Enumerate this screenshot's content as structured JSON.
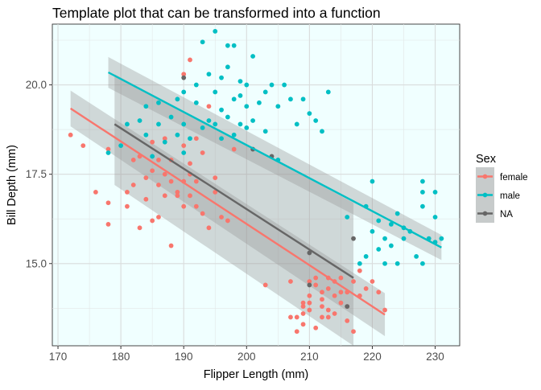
{
  "chart_data": {
    "type": "scatter",
    "title": "Template plot that can be transformed into a function",
    "xlabel": "Flipper Length (mm)",
    "ylabel": "Bill Depth (mm)",
    "xlim": [
      169.1,
      233.9
    ],
    "ylim": [
      12.7,
      21.7
    ],
    "x_ticks": [
      170,
      180,
      190,
      200,
      210,
      220,
      230
    ],
    "y_ticks": [
      15.0,
      17.5,
      20.0
    ],
    "y_tick_labels": [
      "15.0",
      "17.5",
      "20.0"
    ],
    "grid": true,
    "panel_background": "#F0FFFF",
    "legend": {
      "title": "Sex",
      "placement": "right",
      "entries": [
        "female",
        "male",
        "NA"
      ]
    },
    "series": [
      {
        "name": "female",
        "color": "#F8766D",
        "points": [
          [
            172,
            18.6
          ],
          [
            174,
            18.3
          ],
          [
            176,
            17.0
          ],
          [
            178,
            16.7
          ],
          [
            178,
            16.1
          ],
          [
            178,
            18.2
          ],
          [
            181,
            17.0
          ],
          [
            181,
            16.6
          ],
          [
            182,
            17.9
          ],
          [
            182,
            17.2
          ],
          [
            183,
            18.0
          ],
          [
            183,
            16.0
          ],
          [
            184,
            16.8
          ],
          [
            184,
            17.4
          ],
          [
            185,
            16.2
          ],
          [
            185,
            17.6
          ],
          [
            185,
            18.4
          ],
          [
            186,
            17.2
          ],
          [
            186,
            17.9
          ],
          [
            186,
            16.3
          ],
          [
            187,
            18.5
          ],
          [
            187,
            17.5
          ],
          [
            187,
            16.9
          ],
          [
            188,
            17.3
          ],
          [
            188,
            15.5
          ],
          [
            188,
            17.9
          ],
          [
            189,
            17.0
          ],
          [
            189,
            16.9
          ],
          [
            190,
            17.3
          ],
          [
            190,
            18.3
          ],
          [
            190,
            16.6
          ],
          [
            191,
            17.8
          ],
          [
            191,
            16.9
          ],
          [
            191,
            17.5
          ],
          [
            192,
            17.3
          ],
          [
            192,
            16.6
          ],
          [
            193,
            18.1
          ],
          [
            193,
            16.4
          ],
          [
            194,
            16.0
          ],
          [
            195,
            17.4
          ],
          [
            195,
            17.0
          ],
          [
            196,
            16.3
          ],
          [
            197,
            16.2
          ],
          [
            198,
            18.2
          ],
          [
            191,
            20.7
          ],
          [
            190,
            20.3
          ],
          [
            194,
            19.4
          ],
          [
            192,
            18.5
          ],
          [
            203,
            14.4
          ],
          [
            207,
            13.5
          ],
          [
            208,
            13.5
          ],
          [
            209,
            13.8
          ],
          [
            209,
            13.6
          ],
          [
            209,
            13.3
          ],
          [
            210,
            14.1
          ],
          [
            210,
            13.9
          ],
          [
            210,
            13.7
          ],
          [
            211,
            14.4
          ],
          [
            211,
            13.2
          ],
          [
            211,
            14.6
          ],
          [
            212,
            14.0
          ],
          [
            212,
            13.8
          ],
          [
            212,
            14.2
          ],
          [
            212,
            13.5
          ],
          [
            213,
            14.6
          ],
          [
            213,
            14.3
          ],
          [
            213,
            13.7
          ],
          [
            214,
            14.1
          ],
          [
            214,
            13.6
          ],
          [
            214,
            14.5
          ],
          [
            215,
            14.2
          ],
          [
            215,
            13.9
          ],
          [
            215,
            14.6
          ],
          [
            216,
            13.4
          ],
          [
            216,
            13.8
          ],
          [
            217,
            14.5
          ],
          [
            217,
            13.1
          ],
          [
            218,
            14.1
          ],
          [
            218,
            14.8
          ],
          [
            219,
            14.3
          ],
          [
            220,
            14.5
          ],
          [
            221,
            14.2
          ],
          [
            222,
            13.7
          ],
          [
            207,
            14.5
          ],
          [
            208,
            13.1
          ],
          [
            209,
            13.9
          ],
          [
            210,
            14.5
          ],
          [
            213,
            13.5
          ],
          [
            216,
            14.2
          ]
        ]
      },
      {
        "name": "male",
        "color": "#00BFC4",
        "points": [
          [
            178,
            18.1
          ],
          [
            180,
            18.3
          ],
          [
            181,
            18.9
          ],
          [
            183,
            19.0
          ],
          [
            184,
            18.6
          ],
          [
            184,
            19.4
          ],
          [
            185,
            18.0
          ],
          [
            186,
            18.9
          ],
          [
            186,
            19.5
          ],
          [
            187,
            18.4
          ],
          [
            188,
            19.1
          ],
          [
            189,
            18.6
          ],
          [
            189,
            19.6
          ],
          [
            190,
            18.9
          ],
          [
            190,
            18.1
          ],
          [
            190,
            19.8
          ],
          [
            191,
            18.5
          ],
          [
            192,
            20.0
          ],
          [
            192,
            19.5
          ],
          [
            193,
            21.2
          ],
          [
            193,
            18.8
          ],
          [
            194,
            20.3
          ],
          [
            194,
            19.0
          ],
          [
            195,
            21.5
          ],
          [
            195,
            19.8
          ],
          [
            195,
            18.9
          ],
          [
            196,
            20.2
          ],
          [
            196,
            19.3
          ],
          [
            196,
            18.5
          ],
          [
            197,
            21.1
          ],
          [
            197,
            19.1
          ],
          [
            197,
            20.5
          ],
          [
            198,
            19.6
          ],
          [
            198,
            21.1
          ],
          [
            198,
            18.6
          ],
          [
            199,
            19.7
          ],
          [
            199,
            18.9
          ],
          [
            199,
            20.1
          ],
          [
            200,
            19.4
          ],
          [
            200,
            18.8
          ],
          [
            200,
            20.0
          ],
          [
            201,
            20.8
          ],
          [
            201,
            19.0
          ],
          [
            202,
            19.5
          ],
          [
            203,
            18.7
          ],
          [
            203,
            19.8
          ],
          [
            204,
            20.0
          ],
          [
            205,
            19.4
          ],
          [
            205,
            17.9
          ],
          [
            206,
            20.0
          ],
          [
            207,
            19.6
          ],
          [
            208,
            18.9
          ],
          [
            209,
            19.6
          ],
          [
            210,
            19.2
          ],
          [
            211,
            19.0
          ],
          [
            212,
            18.7
          ],
          [
            213,
            19.8
          ],
          [
            216,
            16.3
          ],
          [
            218,
            15.0
          ],
          [
            219,
            16.6
          ],
          [
            219,
            15.2
          ],
          [
            220,
            17.3
          ],
          [
            220,
            15.9
          ],
          [
            221,
            15.4
          ],
          [
            221,
            16.2
          ],
          [
            222,
            15.7
          ],
          [
            222,
            15.0
          ],
          [
            223,
            16.1
          ],
          [
            223,
            15.5
          ],
          [
            224,
            16.4
          ],
          [
            224,
            15.0
          ],
          [
            225,
            16.0
          ],
          [
            225,
            15.7
          ],
          [
            226,
            15.9
          ],
          [
            227,
            15.2
          ],
          [
            228,
            17.3
          ],
          [
            228,
            16.6
          ],
          [
            228,
            15.0
          ],
          [
            228,
            17.0
          ],
          [
            229,
            15.7
          ],
          [
            230,
            16.3
          ],
          [
            230,
            17.0
          ],
          [
            230,
            15.6
          ],
          [
            231,
            15.7
          ]
        ]
      },
      {
        "name": "NA",
        "color": "#666666",
        "points": [
          [
            190,
            20.2
          ],
          [
            201,
            18.2
          ],
          [
            204,
            18.0
          ],
          [
            210,
            15.3
          ],
          [
            217,
            15.7
          ],
          [
            210,
            14.4
          ],
          [
            216,
            13.8
          ]
        ]
      }
    ],
    "trend_lines": [
      {
        "series": "female",
        "color": "#F8766D",
        "x": [
          172,
          222
        ],
        "y": [
          19.34,
          13.57
        ],
        "ci_upper": [
          19.84,
          14.17
        ],
        "ci_lower": [
          18.84,
          12.97
        ]
      },
      {
        "series": "male",
        "color": "#00BFC4",
        "x": [
          178,
          231
        ],
        "y": [
          20.35,
          15.45
        ],
        "ci_upper": [
          20.78,
          15.8
        ],
        "ci_lower": [
          19.92,
          15.1
        ]
      },
      {
        "series": "NA",
        "color": "#666666",
        "x": [
          179,
          217
        ],
        "y": [
          18.9,
          14.6
        ],
        "ci_upper": [
          20.3,
          16.7
        ],
        "ci_lower": [
          17.2,
          12.7
        ]
      }
    ]
  }
}
